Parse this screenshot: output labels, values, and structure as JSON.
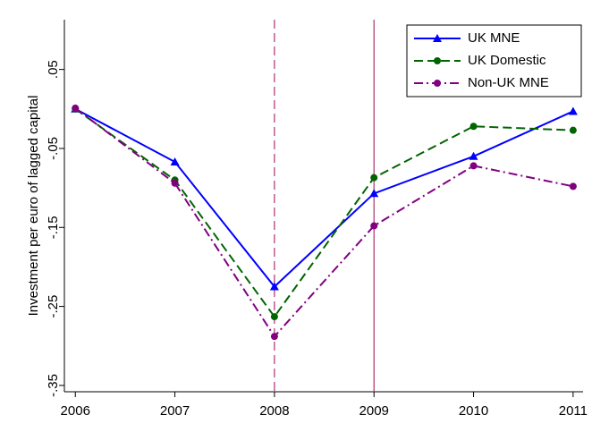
{
  "chart_data": {
    "type": "line",
    "y_label": "Investment per euro of lagged capital",
    "x": [
      2006,
      2007,
      2008,
      2009,
      2010,
      2011
    ],
    "xlim": [
      2005.89,
      2011.1
    ],
    "xticks": [
      2006,
      2007,
      2008,
      2009,
      2010,
      2011
    ],
    "ylim": [
      -0.358,
      0.113
    ],
    "yticks": [
      {
        "value": 0.05,
        "label": ".05"
      },
      {
        "value": -0.05,
        "label": "-.05"
      },
      {
        "value": -0.15,
        "label": "-.15"
      },
      {
        "value": -0.25,
        "label": "-.25"
      },
      {
        "value": -0.35,
        "label": "-.35"
      }
    ],
    "vlines": [
      {
        "x": 2008,
        "style": "dashed",
        "color": "#b03070"
      },
      {
        "x": 2009,
        "style": "solid",
        "color": "#b03070"
      }
    ],
    "legend": "top-right",
    "series": [
      {
        "name": "UK MNE",
        "color": "#0000ff",
        "style": "solid",
        "marker": "triangle",
        "values": [
          0.0,
          -0.067,
          -0.225,
          -0.107,
          -0.06,
          -0.003
        ]
      },
      {
        "name": "UK Domestic",
        "color": "#006400",
        "style": "dashed",
        "marker": "circle",
        "values": [
          0.0,
          -0.09,
          -0.263,
          -0.087,
          -0.022,
          -0.027
        ]
      },
      {
        "name": "Non-UK MNE",
        "color": "#800080",
        "style": "dashdot",
        "marker": "circle",
        "values": [
          0.001,
          -0.094,
          -0.288,
          -0.148,
          -0.072,
          -0.098
        ]
      }
    ]
  }
}
